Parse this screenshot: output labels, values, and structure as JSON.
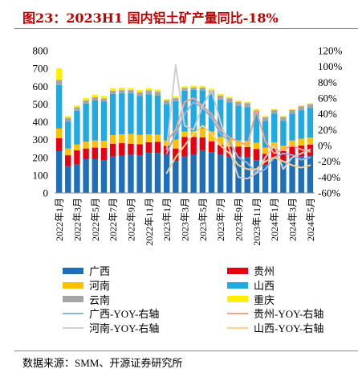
{
  "title": "图23：2023H1 国内铝土矿产量同比-18%",
  "source": "数据来源：SMM、开源证券研究所",
  "chart_data": {
    "type": "bar",
    "stacked": true,
    "grid": false,
    "legend": {
      "position": "bottom",
      "columns": 2
    },
    "x_tick_labels": [
      "2022年1月",
      "2022年3月",
      "2022年5月",
      "2022年7月",
      "2022年9月",
      "2022年11月",
      "2023年1月",
      "2023年3月",
      "2023年5月",
      "2023年7月",
      "2023年9月",
      "2023年11月",
      "2024年1月",
      "2024年3月",
      "2024年5月"
    ],
    "y_left": {
      "range": [
        0,
        800
      ],
      "ticks": [
        "0",
        "100",
        "200",
        "300",
        "400",
        "500",
        "600",
        "700",
        "800"
      ]
    },
    "y_right": {
      "range": [
        -60,
        120
      ],
      "ticks": [
        "-60%",
        "-40%",
        "-20%",
        "0%",
        "20%",
        "40%",
        "60%",
        "80%",
        "100%",
        "120%"
      ]
    },
    "series": [
      {
        "name": "广西",
        "type": "bar",
        "axis": "left",
        "color": "#1e6fba",
        "values": [
          235,
          150,
          160,
          190,
          190,
          185,
          205,
          210,
          215,
          212,
          225,
          225,
          215,
          180,
          205,
          215,
          240,
          230,
          215,
          205,
          205,
          200,
          185,
          160,
          195,
          180,
          200,
          205,
          210
        ]
      },
      {
        "name": "贵州",
        "type": "bar",
        "axis": "left",
        "color": "#e60012",
        "values": [
          73,
          62,
          80,
          60,
          65,
          68,
          72,
          70,
          62,
          62,
          60,
          62,
          50,
          70,
          110,
          100,
          72,
          60,
          55,
          55,
          55,
          58,
          62,
          60,
          55,
          55,
          60,
          62,
          62
        ]
      },
      {
        "name": "河南",
        "type": "bar",
        "axis": "left",
        "color": "#ffc000",
        "values": [
          54,
          38,
          32,
          38,
          40,
          40,
          48,
          50,
          55,
          52,
          45,
          40,
          30,
          50,
          30,
          32,
          50,
          55,
          45,
          40,
          35,
          35,
          35,
          35,
          35,
          30,
          35,
          38,
          40
        ]
      },
      {
        "name": "山西",
        "type": "bar",
        "axis": "left",
        "color": "#21a9e1",
        "values": [
          245,
          150,
          190,
          215,
          225,
          220,
          232,
          230,
          228,
          220,
          225,
          220,
          205,
          215,
          230,
          232,
          215,
          210,
          210,
          210,
          195,
          190,
          160,
          150,
          160,
          140,
          150,
          160,
          165
        ]
      },
      {
        "name": "云南",
        "type": "bar",
        "axis": "left",
        "color": "#a5a5a5",
        "values": [
          28,
          22,
          20,
          18,
          18,
          18,
          18,
          18,
          18,
          20,
          22,
          22,
          20,
          18,
          15,
          14,
          15,
          20,
          22,
          22,
          22,
          22,
          20,
          20,
          22,
          22,
          22,
          22,
          22
        ]
      },
      {
        "name": "重庆",
        "type": "bar",
        "axis": "left",
        "color": "#fff000",
        "values": [
          65,
          10,
          10,
          12,
          14,
          14,
          14,
          14,
          12,
          12,
          12,
          12,
          8,
          10,
          10,
          10,
          10,
          10,
          10,
          8,
          8,
          8,
          8,
          8,
          5,
          5,
          5,
          5,
          5
        ]
      },
      {
        "name": "广西-YOY-右轴",
        "type": "line",
        "axis": "right",
        "color": "#8fb4e3",
        "values": [
          null,
          null,
          null,
          null,
          null,
          null,
          null,
          null,
          null,
          null,
          null,
          null,
          -10,
          15,
          40,
          55,
          48,
          35,
          15,
          5,
          -15,
          -22,
          -35,
          -30,
          -15,
          -10,
          -12,
          -18,
          -15
        ]
      },
      {
        "name": "贵州-YOY-右轴",
        "type": "line",
        "axis": "right",
        "color": "#f4a48a",
        "values": [
          null,
          null,
          null,
          null,
          null,
          null,
          null,
          null,
          null,
          null,
          null,
          null,
          5,
          20,
          55,
          60,
          50,
          40,
          20,
          10,
          5,
          0,
          45,
          5,
          -10,
          -5,
          0,
          -5,
          -8
        ]
      },
      {
        "name": "河南-YOY-右轴",
        "type": "line",
        "axis": "right",
        "color": "#cfcfcf",
        "values": [
          null,
          null,
          null,
          null,
          null,
          null,
          null,
          null,
          null,
          null,
          null,
          null,
          -5,
          102,
          25,
          20,
          50,
          70,
          30,
          -5,
          -40,
          -42,
          -35,
          -15,
          0,
          -30,
          -15,
          -10,
          -5
        ]
      },
      {
        "name": "山西-YOY-右轴",
        "type": "line",
        "axis": "right",
        "color": "#ffd28a",
        "values": [
          null,
          null,
          null,
          null,
          null,
          null,
          null,
          null,
          null,
          null,
          null,
          null,
          -35,
          -15,
          0,
          15,
          25,
          15,
          0,
          -10,
          -25,
          -30,
          -30,
          -20,
          -15,
          -20,
          -25,
          -28,
          -25
        ]
      }
    ]
  }
}
